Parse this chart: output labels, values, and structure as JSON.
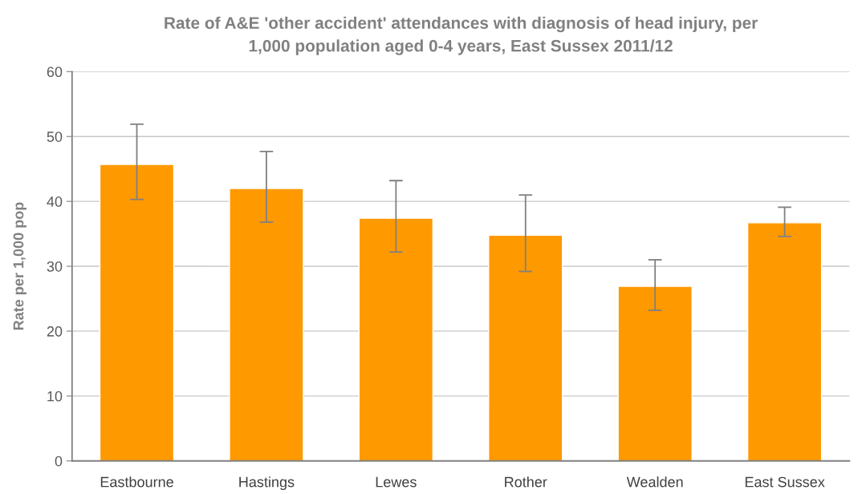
{
  "chart_data": {
    "type": "bar",
    "title": "Rate of A&E 'other accident' attendances with diagnosis of head injury, per\n1,000 population aged 0-4 years, East Sussex 2011/12",
    "ylabel": "Rate per 1,000 pop",
    "categories": [
      "Eastbourne",
      "Hastings",
      "Lewes",
      "Rother",
      "Wealden",
      "East Sussex"
    ],
    "values": [
      45.7,
      42.0,
      37.4,
      34.8,
      26.9,
      36.7
    ],
    "errors": [
      [
        40.3,
        51.9
      ],
      [
        36.8,
        47.7
      ],
      [
        32.2,
        43.2
      ],
      [
        29.2,
        41.0
      ],
      [
        23.2,
        31.0
      ],
      [
        34.6,
        39.1
      ]
    ],
    "color": "#ff9900",
    "ylim": [
      0,
      60
    ],
    "yticks": [
      0,
      10,
      20,
      30,
      40,
      50,
      60
    ],
    "grid": "y",
    "legend": false
  }
}
